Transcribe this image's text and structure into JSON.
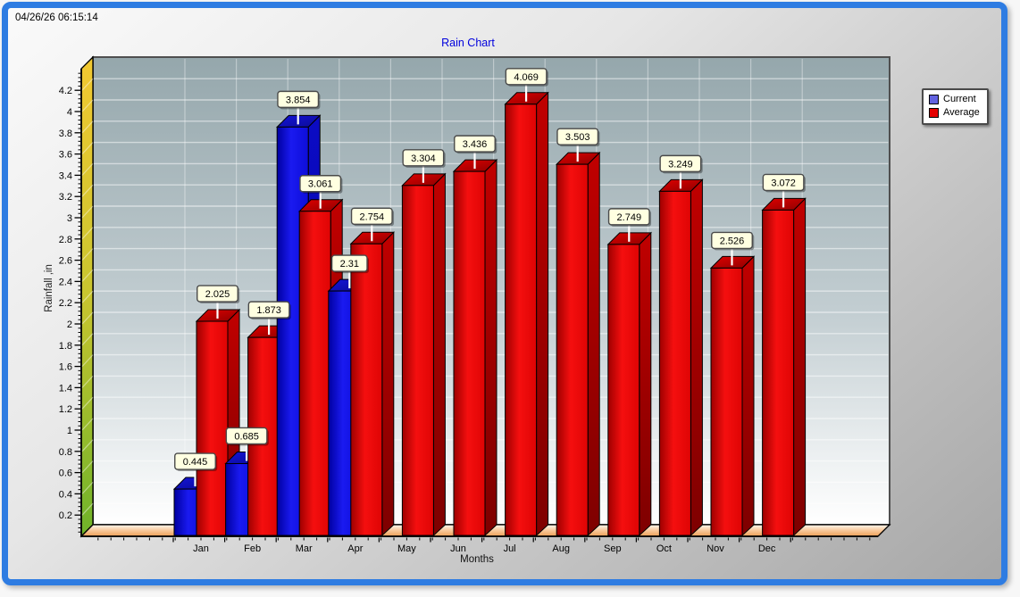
{
  "window": {
    "timestamp": "04/26/26 06:15:14"
  },
  "colors": {
    "frame_accent": "#2e7ce2",
    "title_color": "#0000dd",
    "current_color": "#1a1af0",
    "average_color": "#f50f0f",
    "callout_bg": "#ffffe1"
  },
  "chart_data": {
    "type": "bar",
    "style": "3d-columns",
    "title": "Rain Chart",
    "xlabel": "Months",
    "ylabel": "Rainfall ,in",
    "categories": [
      "Jan",
      "Feb",
      "Mar",
      "Apr",
      "May",
      "Jun",
      "Jul",
      "Aug",
      "Sep",
      "Oct",
      "Nov",
      "Dec"
    ],
    "series": [
      {
        "name": "Current",
        "legend_color": "#6262e0",
        "values": [
          0.445,
          0.685,
          3.854,
          2.31,
          null,
          null,
          null,
          null,
          null,
          null,
          null,
          null
        ]
      },
      {
        "name": "Average",
        "legend_color": "#e60000",
        "values": [
          2.025,
          1.873,
          3.061,
          2.754,
          3.304,
          3.436,
          4.069,
          3.503,
          2.749,
          3.249,
          2.526,
          3.072
        ]
      }
    ],
    "ylim": [
      0,
      4.4
    ],
    "ytick_step": 0.2,
    "grid": true,
    "legend_position": "top-right",
    "value_labels": true
  }
}
